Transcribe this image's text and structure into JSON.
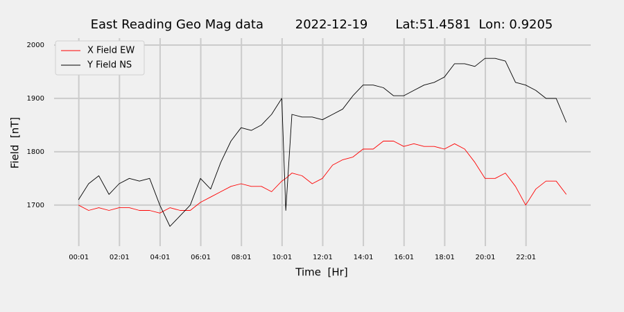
{
  "chart_data": {
    "type": "line",
    "title": "East Reading Geo Mag data        2022-12-19       Lat:51.4581  Lon: 0.9205",
    "x_label": "Time  [Hr]",
    "y_label": "Field  [nT]",
    "x": [
      0,
      0.5,
      1,
      1.5,
      2,
      2.5,
      3,
      3.5,
      4,
      4.5,
      5,
      5.5,
      6,
      6.5,
      7,
      7.5,
      8,
      8.5,
      9,
      9.5,
      10,
      10.2,
      10.5,
      11,
      11.5,
      12,
      12.5,
      13,
      13.5,
      14,
      14.5,
      15,
      15.5,
      16,
      16.5,
      17,
      17.5,
      18,
      18.5,
      19,
      19.5,
      20,
      20.5,
      21,
      21.5,
      22,
      22.5,
      23,
      23.5,
      24
    ],
    "series": [
      {
        "name": "X Field EW",
        "color": "#ff0000",
        "values": [
          1700,
          1690,
          1695,
          1690,
          1695,
          1695,
          1690,
          1690,
          1685,
          1695,
          1690,
          1690,
          1705,
          1715,
          1725,
          1735,
          1740,
          1735,
          1735,
          1725,
          1745,
          1750,
          1760,
          1755,
          1740,
          1750,
          1775,
          1785,
          1790,
          1805,
          1805,
          1820,
          1820,
          1810,
          1815,
          1810,
          1810,
          1805,
          1815,
          1805,
          1780,
          1750,
          1750,
          1760,
          1735,
          1700,
          1730,
          1745,
          1745,
          1720
        ]
      },
      {
        "name": "Y Field NS",
        "color": "#000000",
        "values": [
          1710,
          1740,
          1755,
          1720,
          1740,
          1750,
          1745,
          1750,
          1700,
          1660,
          1680,
          1700,
          1750,
          1730,
          1780,
          1820,
          1845,
          1840,
          1850,
          1870,
          1900,
          1690,
          1870,
          1865,
          1865,
          1860,
          1870,
          1880,
          1905,
          1925,
          1925,
          1920,
          1905,
          1905,
          1915,
          1925,
          1930,
          1940,
          1965,
          1965,
          1960,
          1975,
          1975,
          1970,
          1930,
          1925,
          1915,
          1900,
          1900,
          1855
        ]
      }
    ],
    "xlim": [
      -1.2,
      25.2
    ],
    "ylim": [
      1623,
      2013
    ],
    "xticks": [
      {
        "value": 0.0167,
        "label": "00:01"
      },
      {
        "value": 2.0167,
        "label": "02:01"
      },
      {
        "value": 4.0167,
        "label": "04:01"
      },
      {
        "value": 6.0167,
        "label": "06:01"
      },
      {
        "value": 8.0167,
        "label": "08:01"
      },
      {
        "value": 10.0167,
        "label": "10:01"
      },
      {
        "value": 12.0167,
        "label": "12:01"
      },
      {
        "value": 14.0167,
        "label": "14:01"
      },
      {
        "value": 16.0167,
        "label": "16:01"
      },
      {
        "value": 18.0167,
        "label": "18:01"
      },
      {
        "value": 20.0167,
        "label": "20:01"
      },
      {
        "value": 22.0167,
        "label": "22:01"
      }
    ],
    "yticks": [
      1700,
      1800,
      1900,
      2000
    ],
    "grid": true,
    "legend": "upper-left"
  }
}
